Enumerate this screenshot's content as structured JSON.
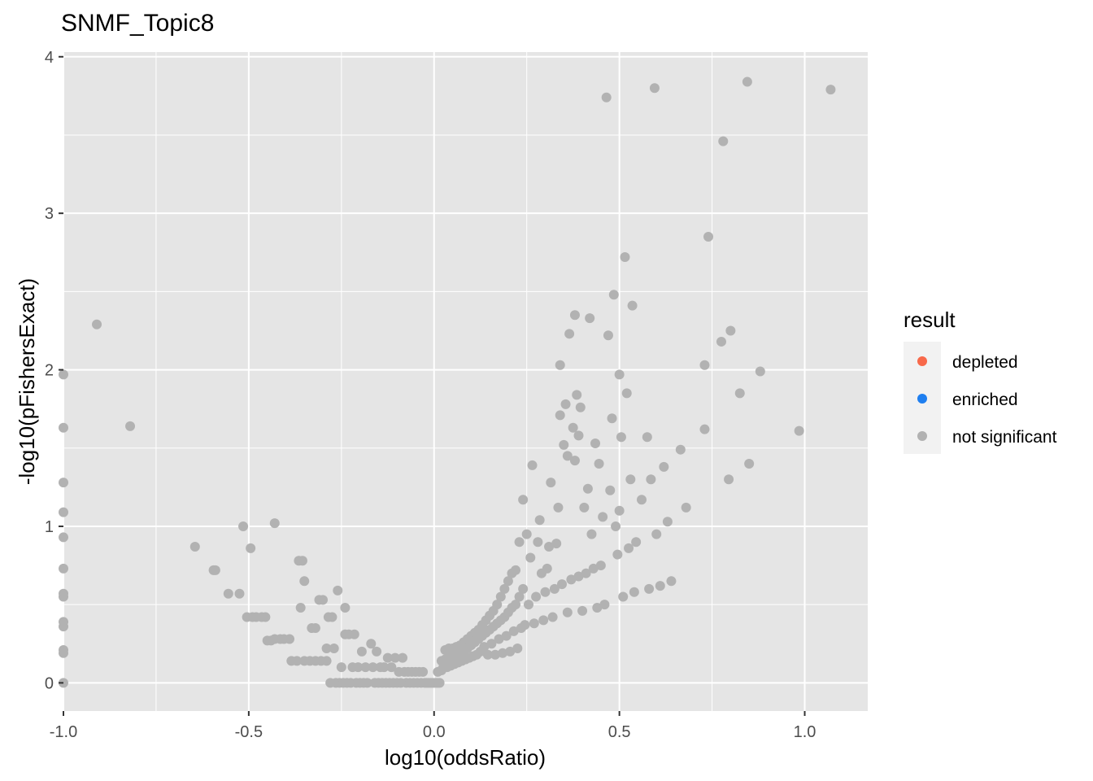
{
  "chart_data": {
    "type": "scatter",
    "title": "SNMF_Topic8",
    "xlabel": "log10(oddsRatio)",
    "ylabel": "-log10(pFishersExact)",
    "xlim": [
      -1.0,
      1.17
    ],
    "ylim": [
      -0.18,
      4.03
    ],
    "x_ticks": [
      -1.0,
      -0.5,
      0.0,
      0.5,
      1.0
    ],
    "x_tick_labels": [
      "-1.0",
      "-0.5",
      "0.0",
      "0.5",
      "1.0"
    ],
    "y_ticks": [
      0,
      1,
      2,
      3,
      4
    ],
    "y_tick_labels": [
      "0",
      "1",
      "2",
      "3",
      "4"
    ],
    "grid": true,
    "panel_background": "#e5e5e5",
    "grid_color": "#ffffff",
    "legend": {
      "title": "result",
      "position": "right",
      "entries": [
        {
          "label": "depleted",
          "color": "#f8694a"
        },
        {
          "label": "enriched",
          "color": "#1f7ff0"
        },
        {
          "label": "not significant",
          "color": "#b2b2b2"
        }
      ]
    },
    "series": [
      {
        "name": "not significant",
        "color": "#b2b2b2",
        "points": [
          [
            -1.0,
            1.97
          ],
          [
            -1.0,
            1.63
          ],
          [
            -1.0,
            1.28
          ],
          [
            -1.0,
            1.09
          ],
          [
            -1.0,
            0.93
          ],
          [
            -1.0,
            0.73
          ],
          [
            -1.0,
            0.57
          ],
          [
            -1.0,
            0.55
          ],
          [
            -1.0,
            0.39
          ],
          [
            -1.0,
            0.36
          ],
          [
            -1.0,
            0.21
          ],
          [
            -1.0,
            0.19
          ],
          [
            -1.0,
            0.0
          ],
          [
            -0.91,
            2.29
          ],
          [
            -0.82,
            1.64
          ],
          [
            -0.645,
            0.87
          ],
          [
            -0.595,
            0.72
          ],
          [
            -0.59,
            0.72
          ],
          [
            -0.555,
            0.57
          ],
          [
            -0.525,
            0.57
          ],
          [
            -0.515,
            1.0
          ],
          [
            -0.505,
            0.42
          ],
          [
            -0.495,
            0.86
          ],
          [
            -0.49,
            0.42
          ],
          [
            -0.48,
            0.42
          ],
          [
            -0.465,
            0.42
          ],
          [
            -0.455,
            0.42
          ],
          [
            -0.45,
            0.27
          ],
          [
            -0.44,
            0.27
          ],
          [
            -0.43,
            0.28
          ],
          [
            -0.43,
            1.02
          ],
          [
            -0.415,
            0.28
          ],
          [
            -0.405,
            0.28
          ],
          [
            -0.39,
            0.28
          ],
          [
            -0.385,
            0.14
          ],
          [
            -0.37,
            0.14
          ],
          [
            -0.365,
            0.78
          ],
          [
            -0.36,
            0.48
          ],
          [
            -0.355,
            0.78
          ],
          [
            -0.35,
            0.14
          ],
          [
            -0.35,
            0.65
          ],
          [
            -0.335,
            0.14
          ],
          [
            -0.33,
            0.35
          ],
          [
            -0.32,
            0.35
          ],
          [
            -0.32,
            0.14
          ],
          [
            -0.31,
            0.53
          ],
          [
            -0.305,
            0.14
          ],
          [
            -0.3,
            0.53
          ],
          [
            -0.29,
            0.14
          ],
          [
            -0.29,
            0.22
          ],
          [
            -0.285,
            0.42
          ],
          [
            -0.28,
            0.0
          ],
          [
            -0.275,
            0.42
          ],
          [
            -0.27,
            0.22
          ],
          [
            -0.265,
            0.0
          ],
          [
            -0.26,
            0.59
          ],
          [
            -0.255,
            0.0
          ],
          [
            -0.25,
            0.1
          ],
          [
            -0.245,
            0.0
          ],
          [
            -0.24,
            0.31
          ],
          [
            -0.24,
            0.48
          ],
          [
            -0.235,
            0.0
          ],
          [
            -0.23,
            0.31
          ],
          [
            -0.225,
            0.0
          ],
          [
            -0.22,
            0.1
          ],
          [
            -0.215,
            0.31
          ],
          [
            -0.21,
            0.0
          ],
          [
            -0.205,
            0.1
          ],
          [
            -0.2,
            0.0
          ],
          [
            -0.195,
            0.2
          ],
          [
            -0.19,
            0.0
          ],
          [
            -0.185,
            0.1
          ],
          [
            -0.18,
            0.0
          ],
          [
            -0.17,
            0.25
          ],
          [
            -0.165,
            0.1
          ],
          [
            -0.16,
            0.0
          ],
          [
            -0.155,
            0.2
          ],
          [
            -0.15,
            0.0
          ],
          [
            -0.145,
            0.1
          ],
          [
            -0.14,
            0.0
          ],
          [
            -0.135,
            0.1
          ],
          [
            -0.13,
            0.0
          ],
          [
            -0.125,
            0.16
          ],
          [
            -0.12,
            0.0
          ],
          [
            -0.115,
            0.1
          ],
          [
            -0.11,
            0.0
          ],
          [
            -0.105,
            0.16
          ],
          [
            -0.1,
            0.0
          ],
          [
            -0.095,
            0.07
          ],
          [
            -0.09,
            0.0
          ],
          [
            -0.085,
            0.16
          ],
          [
            -0.08,
            0.07
          ],
          [
            -0.075,
            0.0
          ],
          [
            -0.07,
            0.07
          ],
          [
            -0.065,
            0.0
          ],
          [
            -0.06,
            0.07
          ],
          [
            -0.055,
            0.0
          ],
          [
            -0.05,
            0.07
          ],
          [
            -0.045,
            0.0
          ],
          [
            -0.04,
            0.07
          ],
          [
            -0.035,
            0.0
          ],
          [
            -0.03,
            0.07
          ],
          [
            -0.025,
            0.0
          ],
          [
            -0.02,
            0.0
          ],
          [
            -0.015,
            0.0
          ],
          [
            -0.01,
            0.0
          ],
          [
            -0.005,
            0.0
          ],
          [
            0.0,
            0.0
          ],
          [
            0.005,
            0.0
          ],
          [
            0.01,
            0.0
          ],
          [
            0.01,
            0.07
          ],
          [
            0.015,
            0.0
          ],
          [
            0.02,
            0.08
          ],
          [
            0.02,
            0.14
          ],
          [
            0.025,
            0.1
          ],
          [
            0.03,
            0.15
          ],
          [
            0.03,
            0.21
          ],
          [
            0.035,
            0.1
          ],
          [
            0.04,
            0.16
          ],
          [
            0.04,
            0.22
          ],
          [
            0.045,
            0.11
          ],
          [
            0.05,
            0.17
          ],
          [
            0.05,
            0.22
          ],
          [
            0.055,
            0.12
          ],
          [
            0.06,
            0.18
          ],
          [
            0.06,
            0.23
          ],
          [
            0.065,
            0.13
          ],
          [
            0.07,
            0.19
          ],
          [
            0.07,
            0.24
          ],
          [
            0.075,
            0.14
          ],
          [
            0.08,
            0.2
          ],
          [
            0.08,
            0.26
          ],
          [
            0.085,
            0.15
          ],
          [
            0.09,
            0.22
          ],
          [
            0.09,
            0.28
          ],
          [
            0.095,
            0.16
          ],
          [
            0.1,
            0.24
          ],
          [
            0.1,
            0.3
          ],
          [
            0.105,
            0.17
          ],
          [
            0.11,
            0.26
          ],
          [
            0.11,
            0.32
          ],
          [
            0.115,
            0.18
          ],
          [
            0.12,
            0.28
          ],
          [
            0.12,
            0.34
          ],
          [
            0.125,
            0.2
          ],
          [
            0.13,
            0.3
          ],
          [
            0.13,
            0.37
          ],
          [
            0.135,
            0.23
          ],
          [
            0.14,
            0.32
          ],
          [
            0.14,
            0.4
          ],
          [
            0.145,
            0.18
          ],
          [
            0.15,
            0.34
          ],
          [
            0.15,
            0.43
          ],
          [
            0.155,
            0.25
          ],
          [
            0.16,
            0.36
          ],
          [
            0.16,
            0.46
          ],
          [
            0.165,
            0.18
          ],
          [
            0.17,
            0.38
          ],
          [
            0.17,
            0.5
          ],
          [
            0.175,
            0.28
          ],
          [
            0.18,
            0.4
          ],
          [
            0.18,
            0.55
          ],
          [
            0.185,
            0.19
          ],
          [
            0.19,
            0.42
          ],
          [
            0.19,
            0.6
          ],
          [
            0.195,
            0.3
          ],
          [
            0.2,
            0.45
          ],
          [
            0.2,
            0.65
          ],
          [
            0.205,
            0.2
          ],
          [
            0.21,
            0.48
          ],
          [
            0.21,
            0.7
          ],
          [
            0.215,
            0.33
          ],
          [
            0.22,
            0.5
          ],
          [
            0.22,
            0.72
          ],
          [
            0.225,
            0.22
          ],
          [
            0.23,
            0.55
          ],
          [
            0.23,
            0.9
          ],
          [
            0.235,
            0.35
          ],
          [
            0.24,
            0.6
          ],
          [
            0.24,
            1.17
          ],
          [
            0.245,
            0.37
          ],
          [
            0.25,
            0.95
          ],
          [
            0.255,
            0.5
          ],
          [
            0.26,
            0.8
          ],
          [
            0.265,
            1.39
          ],
          [
            0.27,
            0.38
          ],
          [
            0.275,
            0.55
          ],
          [
            0.28,
            0.9
          ],
          [
            0.285,
            1.04
          ],
          [
            0.29,
            0.7
          ],
          [
            0.295,
            0.4
          ],
          [
            0.3,
            0.58
          ],
          [
            0.305,
            0.73
          ],
          [
            0.31,
            0.87
          ],
          [
            0.315,
            1.28
          ],
          [
            0.32,
            0.42
          ],
          [
            0.325,
            0.6
          ],
          [
            0.33,
            0.89
          ],
          [
            0.335,
            1.12
          ],
          [
            0.34,
            2.03
          ],
          [
            0.34,
            1.71
          ],
          [
            0.345,
            0.63
          ],
          [
            0.35,
            1.52
          ],
          [
            0.355,
            1.78
          ],
          [
            0.36,
            0.45
          ],
          [
            0.36,
            1.45
          ],
          [
            0.365,
            2.23
          ],
          [
            0.37,
            0.66
          ],
          [
            0.375,
            1.63
          ],
          [
            0.38,
            1.42
          ],
          [
            0.38,
            2.35
          ],
          [
            0.385,
            1.84
          ],
          [
            0.39,
            0.68
          ],
          [
            0.39,
            1.58
          ],
          [
            0.395,
            1.76
          ],
          [
            0.4,
            0.46
          ],
          [
            0.405,
            1.12
          ],
          [
            0.41,
            0.7
          ],
          [
            0.415,
            1.24
          ],
          [
            0.42,
            2.33
          ],
          [
            0.425,
            0.95
          ],
          [
            0.43,
            0.73
          ],
          [
            0.435,
            1.53
          ],
          [
            0.44,
            0.48
          ],
          [
            0.445,
            1.4
          ],
          [
            0.45,
            0.75
          ],
          [
            0.455,
            1.06
          ],
          [
            0.46,
            0.5
          ],
          [
            0.465,
            3.74
          ],
          [
            0.47,
            2.22
          ],
          [
            0.475,
            1.23
          ],
          [
            0.48,
            1.69
          ],
          [
            0.485,
            2.48
          ],
          [
            0.49,
            1.0
          ],
          [
            0.495,
            0.82
          ],
          [
            0.5,
            1.97
          ],
          [
            0.5,
            1.1
          ],
          [
            0.505,
            1.57
          ],
          [
            0.51,
            0.55
          ],
          [
            0.515,
            2.72
          ],
          [
            0.52,
            1.85
          ],
          [
            0.525,
            0.86
          ],
          [
            0.53,
            1.3
          ],
          [
            0.535,
            2.41
          ],
          [
            0.54,
            0.58
          ],
          [
            0.545,
            0.9
          ],
          [
            0.56,
            1.17
          ],
          [
            0.575,
            1.57
          ],
          [
            0.58,
            0.6
          ],
          [
            0.585,
            1.3
          ],
          [
            0.595,
            3.8
          ],
          [
            0.6,
            0.95
          ],
          [
            0.61,
            0.62
          ],
          [
            0.62,
            1.38
          ],
          [
            0.63,
            1.03
          ],
          [
            0.64,
            0.65
          ],
          [
            0.665,
            1.49
          ],
          [
            0.68,
            1.12
          ],
          [
            0.73,
            1.62
          ],
          [
            0.73,
            2.03
          ],
          [
            0.74,
            2.85
          ],
          [
            0.775,
            2.18
          ],
          [
            0.78,
            3.46
          ],
          [
            0.795,
            1.3
          ],
          [
            0.8,
            2.25
          ],
          [
            0.825,
            1.85
          ],
          [
            0.845,
            3.84
          ],
          [
            0.85,
            1.4
          ],
          [
            0.88,
            1.99
          ],
          [
            0.985,
            1.61
          ],
          [
            1.07,
            3.79
          ]
        ]
      }
    ]
  }
}
